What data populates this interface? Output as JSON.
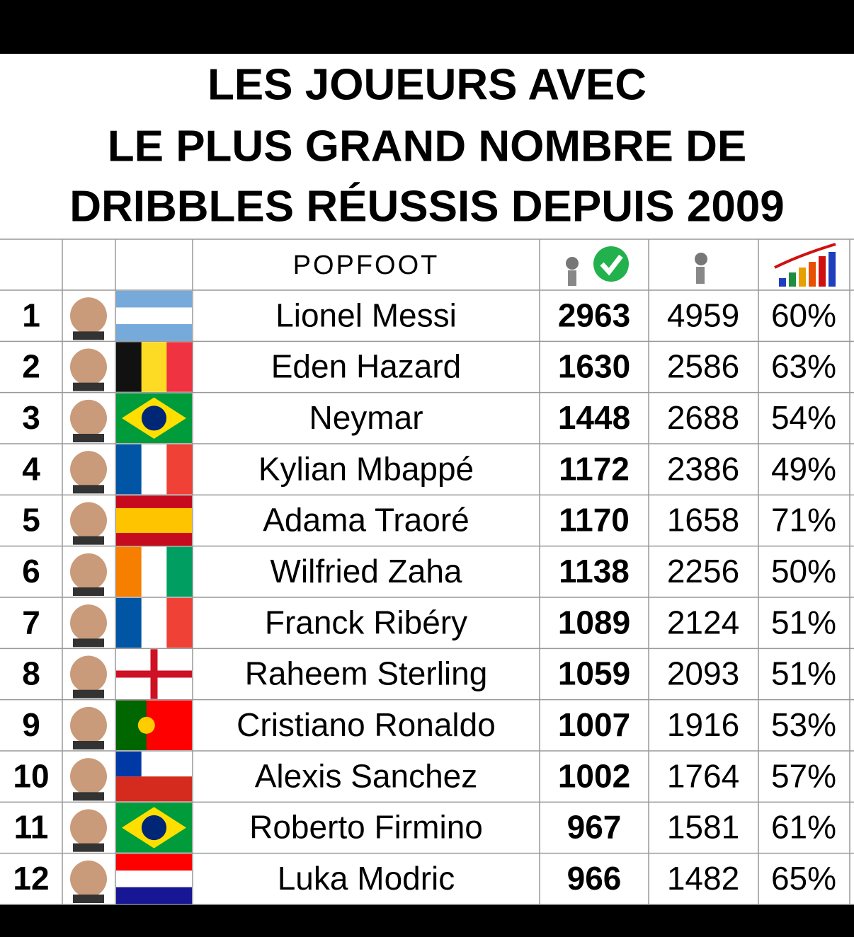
{
  "title": [
    "LES JOUEURS AVEC",
    "LE PLUS GRAND NOMBRE DE",
    "DRIBBLES RÉUSSIS DEPUIS 2009"
  ],
  "logo": "POPFOOT",
  "table": {
    "rows": [
      [
        "1",
        "Lionel Messi",
        "2963",
        "4959",
        "60%"
      ],
      [
        "2",
        "Eden Hazard",
        "1630",
        "2586",
        "63%"
      ],
      [
        "3",
        "Neymar",
        "1448",
        "2688",
        "54%"
      ],
      [
        "4",
        "Kylian Mbappé",
        "1172",
        "2386",
        "49%"
      ],
      [
        "5",
        "Adama Traoré",
        "1170",
        "1658",
        "71%"
      ],
      [
        "6",
        "Wilfried Zaha",
        "1138",
        "2256",
        "50%"
      ],
      [
        "7",
        "Franck Ribéry",
        "1089",
        "2124",
        "51%"
      ],
      [
        "8",
        "Raheem Sterling",
        "1059",
        "2093",
        "51%"
      ],
      [
        "9",
        "Cristiano Ronaldo",
        "1007",
        "1916",
        "53%"
      ],
      [
        "10",
        "Alexis Sanchez",
        "1002",
        "1764",
        "57%"
      ],
      [
        "11",
        "Roberto Firmino",
        "967",
        "1581",
        "61%"
      ],
      [
        "12",
        "Luka Modric",
        "966",
        "1482",
        "65%"
      ]
    ]
  }
}
